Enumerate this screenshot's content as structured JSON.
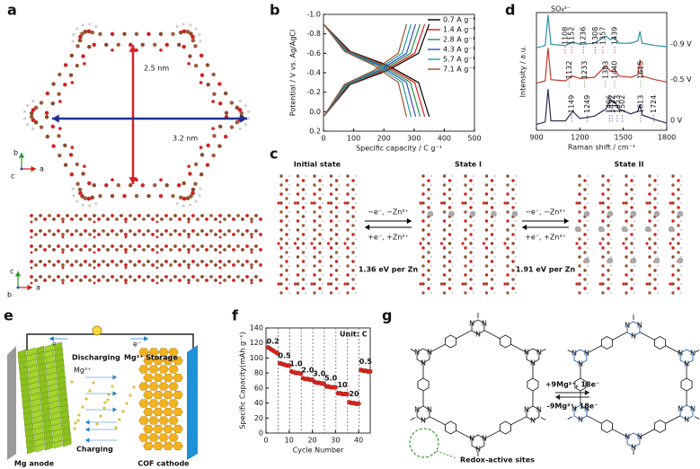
{
  "panel_a": {
    "label": "a",
    "vertical": "2.5 nm",
    "horizontal": "3.2 nm",
    "axis_b": "b",
    "axis_a": "a",
    "axis_c": "c"
  },
  "panel_c": {
    "label": "c",
    "states": [
      "Initial state",
      "State I",
      "State II"
    ],
    "arrow_top": "−e⁻, −Zn²⁺",
    "arrow_bottom": "+e⁻, +Zn²⁺",
    "energies": [
      "1.36 eV per Zn",
      "1.91 eV per Zn"
    ]
  },
  "panel_e": {
    "label": "e",
    "electron": "e⁻",
    "discharging": "Discharging",
    "charging": "Charging",
    "storage": "Mg²⁺ Storage",
    "ion": "Mg²⁺",
    "anode": "Mg anode",
    "cathode": "COF cathode"
  },
  "panel_g": {
    "label": "g",
    "forward": "+9Mg²⁺, 18e⁻",
    "backward": "-9Mg²⁺, 18e⁻",
    "note": "Redox-active sites",
    "atom": "N"
  },
  "chart_data": [
    {
      "label": "b",
      "type": "line",
      "x_label": "Specific capacity / C g⁻¹",
      "y_label": "Potential / V vs. Ag/AgCl",
      "xlim": [
        0,
        500
      ],
      "xticks": [
        0,
        100,
        200,
        300,
        400,
        500
      ],
      "ylim": [
        0.2,
        -1.0
      ],
      "yticks": [
        {
          "value": -1.0,
          "label": "-1.0"
        },
        -0.8,
        -0.6,
        -0.4,
        -0.2,
        {
          "value": 0,
          "label": "0.0"
        },
        0.2
      ],
      "legend": "upper right",
      "series": [
        {
          "name": "0.7 A g⁻¹",
          "color": "#000000",
          "x": [
            0,
            88,
            210,
            315,
            350,
            null,
            0,
            88,
            210,
            315,
            350
          ],
          "values": [
            -0.9,
            -0.62,
            -0.48,
            -0.3,
            0.05,
            null,
            0.05,
            -0.28,
            -0.42,
            -0.6,
            -0.9
          ]
        },
        {
          "name": "1.4 A g⁻¹",
          "color": "#e41a1c",
          "x": [
            0,
            84,
            201,
            302,
            335,
            null,
            0,
            84,
            201,
            302,
            335
          ],
          "values": [
            -0.9,
            -0.62,
            -0.48,
            -0.3,
            0.05,
            null,
            0.05,
            -0.28,
            -0.42,
            -0.6,
            -0.9
          ]
        },
        {
          "name": "2.8 A g⁻¹",
          "color": "#1a9850",
          "x": [
            0,
            80,
            192,
            288,
            320,
            null,
            0,
            80,
            192,
            288,
            320
          ],
          "values": [
            -0.9,
            -0.62,
            -0.48,
            -0.3,
            0.05,
            null,
            0.05,
            -0.28,
            -0.42,
            -0.6,
            -0.9
          ]
        },
        {
          "name": "4.3 A g⁻¹",
          "color": "#3b4cc0",
          "x": [
            0,
            76,
            183,
            275,
            305,
            null,
            0,
            76,
            183,
            275,
            305
          ],
          "values": [
            -0.9,
            -0.62,
            -0.48,
            -0.3,
            0.05,
            null,
            0.05,
            -0.28,
            -0.42,
            -0.6,
            -0.9
          ]
        },
        {
          "name": "5.7 A g⁻¹",
          "color": "#1fa0a0",
          "x": [
            0,
            73,
            174,
            261,
            290,
            null,
            0,
            73,
            174,
            261,
            290
          ],
          "values": [
            -0.9,
            -0.62,
            -0.48,
            -0.3,
            0.05,
            null,
            0.05,
            -0.28,
            -0.42,
            -0.6,
            -0.9
          ]
        },
        {
          "name": "7.1 A g⁻¹",
          "color": "#a0522d",
          "x": [
            0,
            69,
            165,
            248,
            275,
            null,
            0,
            69,
            165,
            248,
            275
          ],
          "values": [
            -0.9,
            -0.62,
            -0.48,
            -0.3,
            0.05,
            null,
            0.05,
            -0.28,
            -0.42,
            -0.6,
            -0.9
          ]
        }
      ]
    },
    {
      "label": "d",
      "type": "line",
      "x_label": "Raman shift / cm⁻¹",
      "y_label": "Intensity / a.u.",
      "annotation": "SO₄²⁻",
      "xlim": [
        900,
        1800
      ],
      "xticks": [
        900,
        1200,
        1500,
        1800
      ],
      "ylim": [
        0,
        10
      ],
      "x": [
        900,
        960,
        980,
        1000,
        1100,
        1150,
        1200,
        1300,
        1380,
        1410,
        1440,
        1470,
        1550,
        1600,
        1615,
        1630,
        1720,
        1800
      ],
      "series": [
        {
          "name": "-0.9 V",
          "color": "#2a8fa8",
          "label_color": "#c8102e",
          "peak_labels": [
            "1108",
            "1152",
            "1236",
            "1308",
            "1357",
            "1439"
          ],
          "values": [
            7.0,
            7.2,
            9.8,
            7.3,
            7.2,
            7.5,
            7.3,
            7.4,
            8.0,
            7.7,
            7.9,
            7.4,
            7.4,
            7.6,
            8.4,
            7.4,
            7.2,
            7.1
          ]
        },
        {
          "name": "-0.5 V",
          "color": "#c0392b",
          "label_color": "#2e9b2e",
          "peak_labels": [
            "1132",
            "1233",
            "1383",
            "1440",
            "1615"
          ],
          "values": [
            4.0,
            4.2,
            7.0,
            4.3,
            4.2,
            4.6,
            4.4,
            4.5,
            5.5,
            5.0,
            5.2,
            4.6,
            4.5,
            4.7,
            6.0,
            4.6,
            4.3,
            4.1
          ]
        },
        {
          "name": "0 V",
          "color": "#2b2b55",
          "label_color": "#2c3e9e",
          "peak_labels": [
            "1149",
            "1249",
            "1406",
            "1422",
            "1453",
            "1502",
            "1613",
            "1724"
          ],
          "values": [
            0.5,
            0.7,
            3.5,
            0.8,
            0.8,
            1.6,
            1.0,
            1.2,
            1.8,
            2.6,
            2.4,
            1.8,
            1.4,
            1.6,
            2.2,
            1.3,
            0.9,
            0.6
          ]
        }
      ]
    },
    {
      "label": "f",
      "type": "scatter",
      "x_label": "Cycle Number",
      "y_label": "Specific Capacity(mAh g⁻¹)",
      "unit_label": "Unit: C",
      "color": "#e8261b",
      "xlim": [
        0,
        45
      ],
      "xticks": [
        0,
        10,
        20,
        30,
        40
      ],
      "ylim": [
        0,
        140
      ],
      "yticks": [
        0,
        20,
        40,
        60,
        80,
        100,
        120,
        140
      ],
      "vlines": [
        5,
        10,
        15,
        20,
        25,
        30,
        35,
        40
      ],
      "rate_labels": [
        "0.2",
        "0.5",
        "1.0",
        "2.0",
        "3.0",
        "5.0",
        "10",
        "20",
        "0.5"
      ],
      "x": [
        1,
        2,
        3,
        4,
        5,
        6,
        7,
        8,
        9,
        10,
        11,
        12,
        13,
        14,
        15,
        16,
        17,
        18,
        19,
        20,
        21,
        22,
        23,
        24,
        25,
        26,
        27,
        28,
        29,
        30,
        31,
        32,
        33,
        34,
        35,
        36,
        37,
        38,
        39,
        40,
        41,
        42,
        43,
        44,
        45
      ],
      "values": [
        114,
        112,
        110,
        108,
        106,
        93,
        92,
        91,
        90,
        90,
        82,
        81,
        80,
        80,
        79,
        73,
        72,
        72,
        71,
        71,
        68,
        67,
        67,
        66,
        66,
        62,
        62,
        61,
        61,
        61,
        53,
        53,
        52,
        52,
        52,
        41,
        40,
        40,
        39,
        39,
        84,
        83,
        83,
        82,
        82
      ]
    }
  ]
}
